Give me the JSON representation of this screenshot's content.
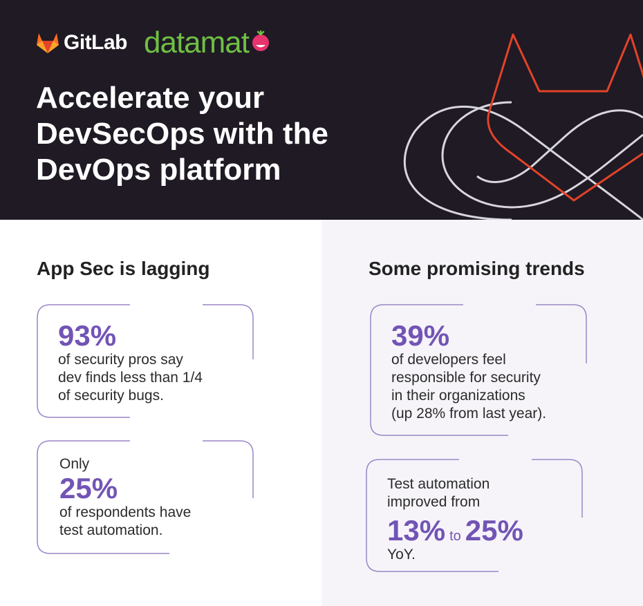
{
  "header": {
    "gitlab_logo_text": "GitLab",
    "datamato_logo_text": "datamat",
    "title": "Accelerate your\nDevSecOps with the\nDevOps platform"
  },
  "left": {
    "heading": "App Sec is lagging",
    "card1": {
      "stat": "93%",
      "text": "of security pros say\ndev finds less than 1/4\nof security bugs."
    },
    "card2": {
      "pre": "Only",
      "stat": "25%",
      "text": "of respondents have\ntest automation."
    }
  },
  "right": {
    "heading": "Some promising trends",
    "card1": {
      "stat": "39%",
      "text": "of developers feel\nresponsible for security\nin their organizations\n(up 28% from last year)."
    },
    "card2": {
      "pre": "Test automation\nimproved from",
      "stat_from": "13%",
      "connector": "to",
      "stat_to": "25%",
      "post": "YoY."
    }
  },
  "colors": {
    "hero_bg": "#1f1a24",
    "accent_purple": "#7254b5",
    "gitlab_orange": "#fc6d26",
    "datamato_green": "#6fbf44",
    "hero_art_red": "#e24329"
  }
}
